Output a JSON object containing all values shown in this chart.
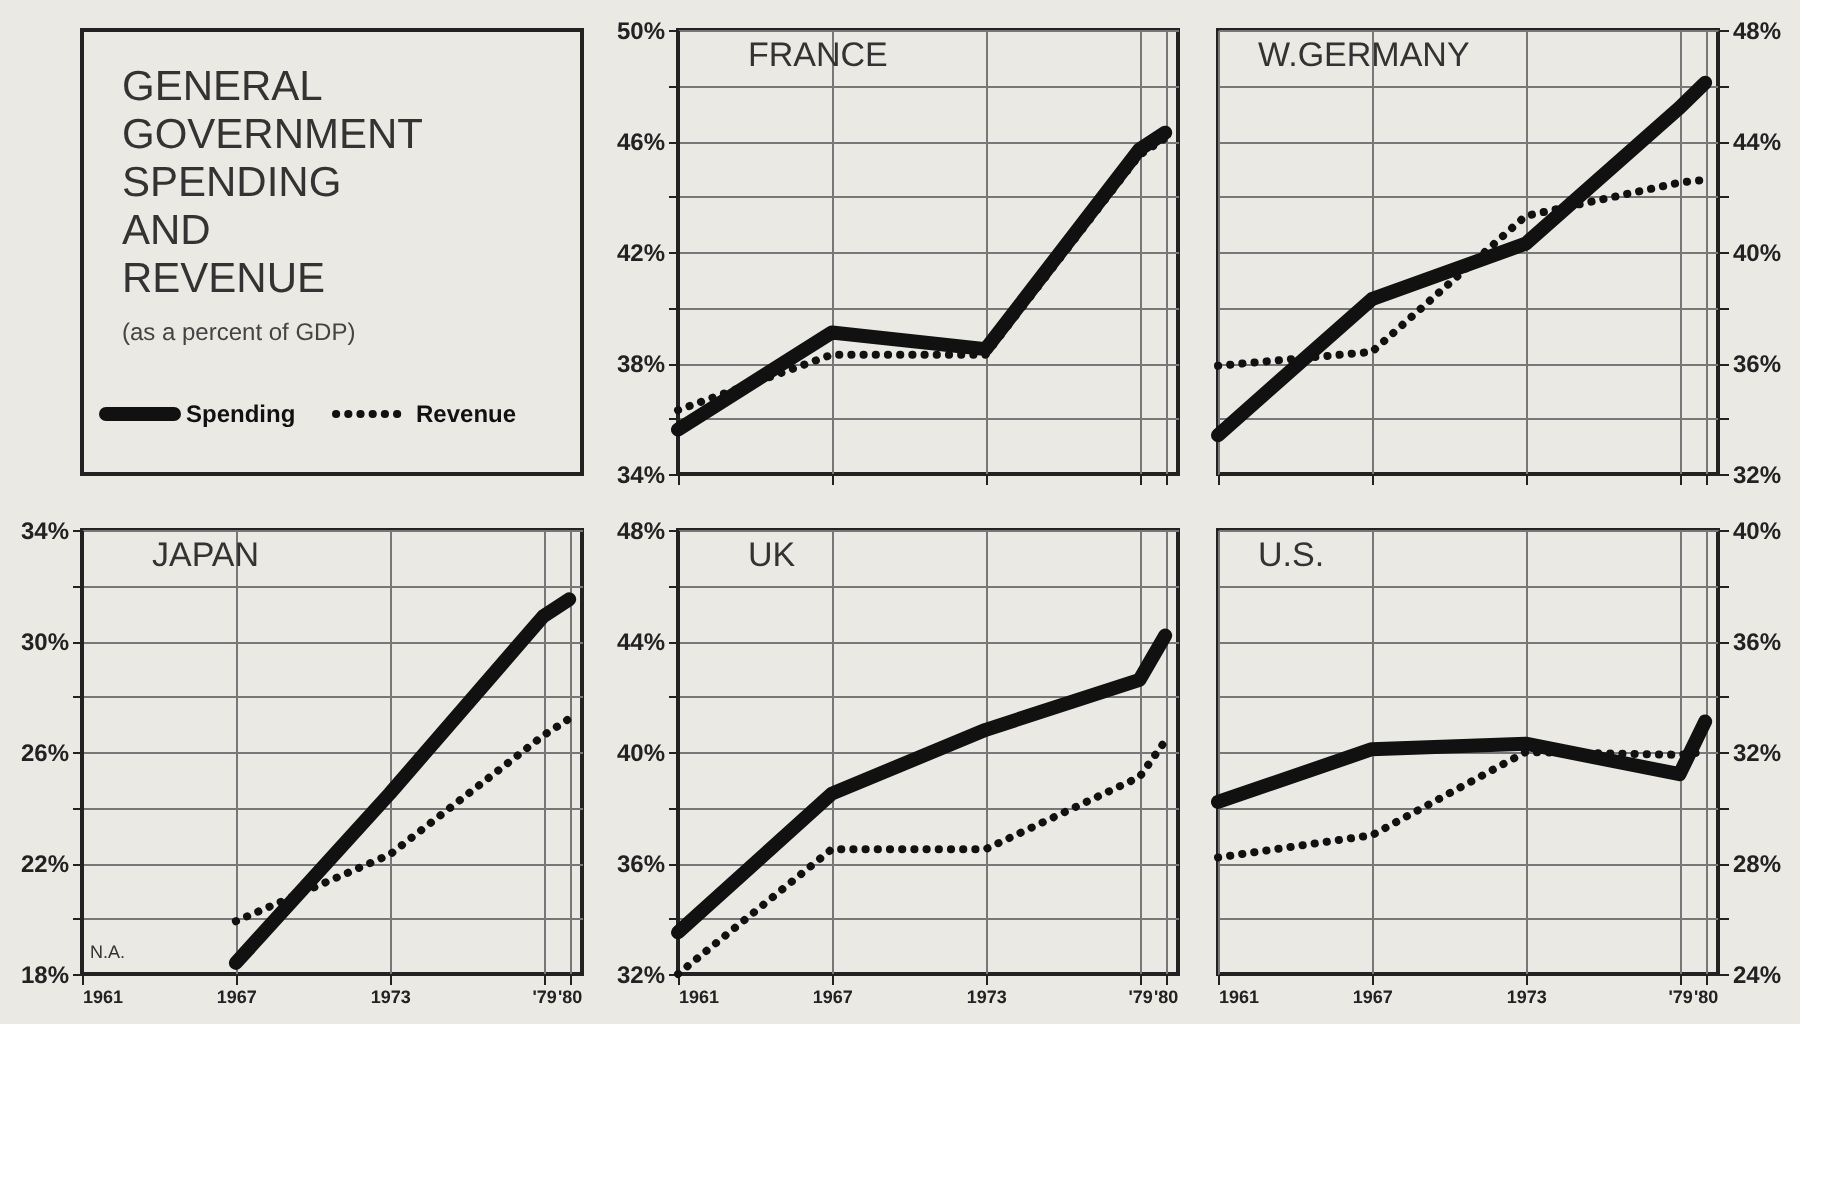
{
  "chart_data": [
    {
      "type": "other",
      "title": "GENERAL GOVERNMENT SPENDING AND REVENUE",
      "subtitle": "(as a percent of GDP)",
      "legend": "bottom",
      "series": [
        {
          "name": "Spending",
          "color": "#111111",
          "line_style": "solid"
        },
        {
          "name": "Revenue",
          "color": "#111111",
          "line_style": "dotted"
        }
      ]
    },
    {
      "type": "line",
      "title": "FRANCE",
      "x": [
        1961,
        1967,
        1973,
        1979,
        1980
      ],
      "xlim": [
        1961,
        1980.5
      ],
      "xticks": [
        {
          "value": 1961,
          "label": null
        },
        {
          "value": 1967,
          "label": null
        },
        {
          "value": 1973,
          "label": null
        },
        {
          "value": 1979,
          "label": null
        },
        {
          "value": 1980,
          "label": null
        }
      ],
      "ylim": [
        34,
        50
      ],
      "yticks": [
        {
          "value": 34,
          "label": "34%"
        },
        {
          "value": 36,
          "label": null
        },
        {
          "value": 38,
          "label": "38%"
        },
        {
          "value": 40,
          "label": null
        },
        {
          "value": 42,
          "label": "42%"
        },
        {
          "value": 44,
          "label": null
        },
        {
          "value": 46,
          "label": "46%"
        },
        {
          "value": 48,
          "label": null
        },
        {
          "value": 50,
          "label": "50%"
        }
      ],
      "tick_labels": "y",
      "grid": true,
      "series": [
        {
          "color": "#111111",
          "line_style": "solid",
          "values": [
            35.6,
            39.1,
            38.5,
            45.7,
            46.3
          ]
        },
        {
          "color": "#111111",
          "line_style": "dotted",
          "values": [
            36.3,
            38.3,
            38.3,
            45.5,
            46.1
          ]
        }
      ]
    },
    {
      "type": "line",
      "title": "W.GERMANY",
      "x": [
        1961,
        1967,
        1973,
        1979,
        1980
      ],
      "xlim": [
        1961,
        1980.5
      ],
      "xticks": [
        {
          "value": 1961,
          "label": null
        },
        {
          "value": 1967,
          "label": null
        },
        {
          "value": 1973,
          "label": null
        },
        {
          "value": 1979,
          "label": null
        },
        {
          "value": 1980,
          "label": null
        }
      ],
      "y2lim": [
        32,
        48
      ],
      "y2ticks": [
        {
          "value": 32,
          "label": "32%"
        },
        {
          "value": 34,
          "label": null
        },
        {
          "value": 36,
          "label": "36%"
        },
        {
          "value": 38,
          "label": null
        },
        {
          "value": 40,
          "label": "40%"
        },
        {
          "value": 42,
          "label": null
        },
        {
          "value": 44,
          "label": "44%"
        },
        {
          "value": 46,
          "label": null
        },
        {
          "value": 48,
          "label": "48%"
        }
      ],
      "tick_labels": "y",
      "grid": true,
      "series": [
        {
          "color": "#111111",
          "line_style": "solid",
          "axis": "y2",
          "values": [
            33.4,
            38.3,
            40.3,
            45.2,
            46.1
          ]
        },
        {
          "color": "#111111",
          "line_style": "dotted",
          "axis": "y2",
          "values": [
            35.9,
            36.4,
            41.3,
            42.5,
            42.6
          ]
        }
      ]
    },
    {
      "type": "line",
      "title": "JAPAN",
      "x": [
        1967,
        1973,
        1979,
        1980
      ],
      "xlim": [
        1961,
        1980.5
      ],
      "xticks": [
        1961,
        1967,
        1973,
        {
          "value": 1979,
          "label": "'79"
        },
        {
          "value": 1980,
          "label": "'80"
        }
      ],
      "ylim": [
        18,
        34
      ],
      "yticks": [
        {
          "value": 18,
          "label": "18%"
        },
        {
          "value": 20,
          "label": null
        },
        {
          "value": 22,
          "label": "22%"
        },
        {
          "value": 24,
          "label": null
        },
        {
          "value": 26,
          "label": "26%"
        },
        {
          "value": 28,
          "label": null
        },
        {
          "value": 30,
          "label": "30%"
        },
        {
          "value": 32,
          "label": null
        },
        {
          "value": 34,
          "label": "34%"
        }
      ],
      "grid": true,
      "annotations": [
        "N.A."
      ],
      "series": [
        {
          "color": "#111111",
          "line_style": "solid",
          "values": [
            18.4,
            24.5,
            30.9,
            31.5
          ]
        },
        {
          "color": "#111111",
          "line_style": "dotted",
          "values": [
            19.9,
            22.3,
            26.6,
            27.2
          ]
        }
      ]
    },
    {
      "type": "line",
      "title": "UK",
      "x": [
        1961,
        1967,
        1973,
        1979,
        1980
      ],
      "xlim": [
        1961,
        1980.5
      ],
      "xticks": [
        1961,
        1967,
        1973,
        {
          "value": 1979,
          "label": "'79"
        },
        {
          "value": 1980,
          "label": "'80"
        }
      ],
      "ylim": [
        32,
        48
      ],
      "yticks": [
        {
          "value": 32,
          "label": "32%"
        },
        {
          "value": 34,
          "label": null
        },
        {
          "value": 36,
          "label": "36%"
        },
        {
          "value": 38,
          "label": null
        },
        {
          "value": 40,
          "label": "40%"
        },
        {
          "value": 42,
          "label": null
        },
        {
          "value": 44,
          "label": "44%"
        },
        {
          "value": 46,
          "label": null
        },
        {
          "value": 48,
          "label": "48%"
        }
      ],
      "grid": true,
      "series": [
        {
          "color": "#111111",
          "line_style": "solid",
          "values": [
            33.5,
            38.5,
            40.8,
            42.6,
            44.2
          ]
        },
        {
          "color": "#111111",
          "line_style": "dotted",
          "values": [
            32.0,
            36.5,
            36.5,
            39.1,
            40.4
          ]
        }
      ]
    },
    {
      "type": "line",
      "title": "U.S.",
      "x": [
        1961,
        1967,
        1973,
        1979,
        1980
      ],
      "xlim": [
        1961,
        1980.5
      ],
      "xticks": [
        1961,
        1967,
        1973,
        {
          "value": 1979,
          "label": "'79"
        },
        {
          "value": 1980,
          "label": "'80"
        }
      ],
      "y2lim": [
        24,
        40
      ],
      "y2ticks": [
        {
          "value": 24,
          "label": "24%"
        },
        {
          "value": 26,
          "label": null
        },
        {
          "value": 28,
          "label": "28%"
        },
        {
          "value": 30,
          "label": null
        },
        {
          "value": 32,
          "label": "32%"
        },
        {
          "value": 34,
          "label": null
        },
        {
          "value": 36,
          "label": "36%"
        },
        {
          "value": 38,
          "label": null
        },
        {
          "value": 40,
          "label": "40%"
        }
      ],
      "grid": true,
      "series": [
        {
          "color": "#111111",
          "line_style": "solid",
          "axis": "y2",
          "values": [
            30.2,
            32.1,
            32.3,
            31.2,
            33.1
          ]
        },
        {
          "color": "#111111",
          "line_style": "dotted",
          "axis": "y2",
          "values": [
            28.2,
            29.0,
            32.0,
            31.9,
            32.0
          ]
        }
      ]
    }
  ]
}
